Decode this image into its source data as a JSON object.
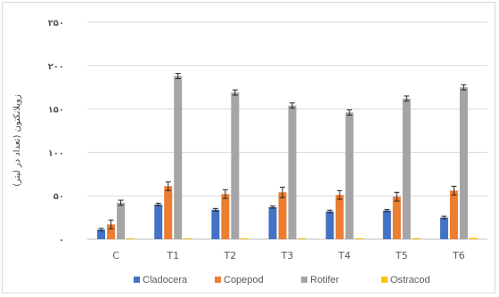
{
  "chart_data": {
    "type": "bar",
    "title": "",
    "xlabel": "",
    "ylabel": "زوپلانکتون (تعداد در لیتر)",
    "ylim": [
      0,
      250
    ],
    "yticks": [
      "۰",
      "۵۰",
      "۱۰۰",
      "۱۵۰",
      "۲۰۰",
      "۲۵۰"
    ],
    "ytick_values": [
      0,
      50,
      100,
      150,
      200,
      250
    ],
    "categories": [
      "C",
      "T1",
      "T2",
      "T3",
      "T4",
      "T5",
      "T6"
    ],
    "grid": true,
    "legend_position": "bottom",
    "error_bars": true,
    "series": [
      {
        "name": "Cladocera",
        "color": "#4472C4",
        "values": [
          11,
          40,
          34,
          37,
          32,
          33,
          25
        ],
        "errors": [
          1.5,
          1.5,
          1.5,
          1.2,
          1.5,
          1.2,
          1.5
        ]
      },
      {
        "name": "Copepod",
        "color": "#ED7D31",
        "values": [
          17,
          61,
          52,
          54,
          51,
          49,
          56
        ],
        "errors": [
          5,
          5,
          5,
          6,
          5,
          5,
          5
        ]
      },
      {
        "name": "Rotifer",
        "color": "#A5A5A5",
        "values": [
          42,
          188,
          169,
          154,
          146,
          162,
          175
        ],
        "errors": [
          3,
          3,
          3,
          3,
          3,
          3,
          3
        ]
      },
      {
        "name": "Ostracod",
        "color": "#FFC000",
        "values": [
          0.5,
          1,
          1,
          1,
          1.2,
          1.3,
          1.5
        ],
        "errors": [
          0,
          0,
          0,
          0,
          0,
          0,
          0
        ]
      }
    ]
  }
}
